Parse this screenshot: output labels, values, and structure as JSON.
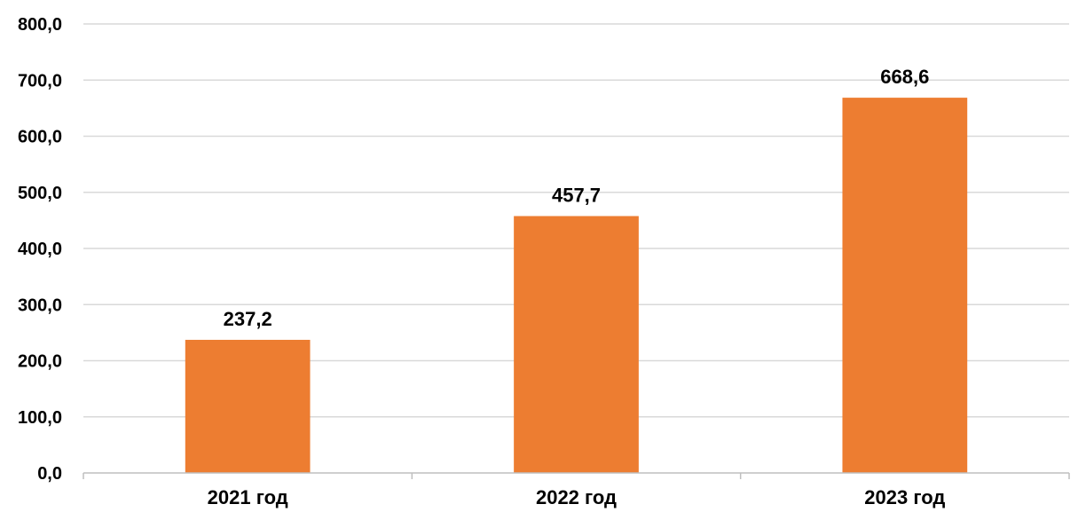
{
  "chart_data": {
    "type": "bar",
    "categories": [
      "2021 год",
      "2022 год",
      "2023 год"
    ],
    "values": [
      237.2,
      457.7,
      668.6
    ],
    "value_labels": [
      "237,2",
      "457,7",
      "668,6"
    ],
    "yticks": [
      "0,0",
      "100,0",
      "200,0",
      "300,0",
      "400,0",
      "500,0",
      "600,0",
      "700,0",
      "800,0"
    ],
    "ylim": [
      0,
      800
    ],
    "ystep": 100,
    "grid": true,
    "legend": "none",
    "title": "",
    "xlabel": "",
    "ylabel": "",
    "colors": {
      "bar": "#ED7D31",
      "grid": "#D9D9D9",
      "axis": "#BFBFBF"
    }
  }
}
